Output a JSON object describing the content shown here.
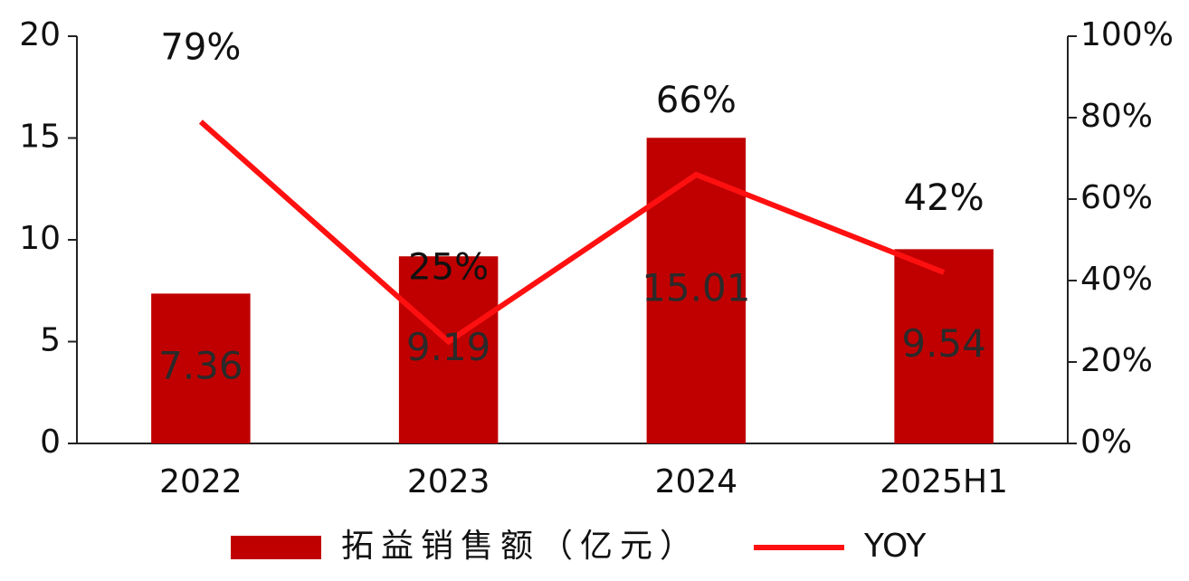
{
  "chart_data": {
    "type": "bar-line",
    "categories": [
      "2022",
      "2023",
      "2024",
      "2025H1"
    ],
    "series": [
      {
        "name": "拓益销售额（亿元）",
        "type": "bar",
        "color": "#c00000",
        "values": [
          7.36,
          9.19,
          15.01,
          9.54
        ]
      },
      {
        "name": "YOY",
        "type": "line",
        "axis": "y2",
        "color": "#ff1010",
        "values": [
          79,
          25,
          66,
          42
        ],
        "value_labels": [
          "79%",
          "25%",
          "66%",
          "42%"
        ]
      }
    ],
    "ylim": [
      0,
      20
    ],
    "yticks": [
      0,
      5,
      10,
      15,
      20
    ],
    "y2lim": [
      0,
      100
    ],
    "y2ticks": [
      {
        "value": 0,
        "label": "0%"
      },
      {
        "value": 20,
        "label": "20%"
      },
      {
        "value": 40,
        "label": "40%"
      },
      {
        "value": 60,
        "label": "60%"
      },
      {
        "value": 80,
        "label": "80%"
      },
      {
        "value": 100,
        "label": "100%"
      }
    ],
    "legend": "bottom",
    "grid": false
  }
}
